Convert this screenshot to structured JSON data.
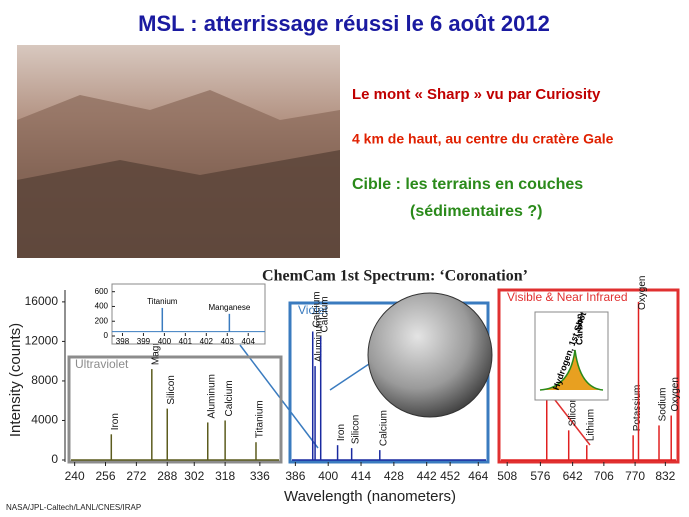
{
  "header": {
    "title": "MSL : atterrissage réussi le 6 août 2012"
  },
  "captions": [
    "Le mont « Sharp » vu par Curiosity",
    "4 km de haut, au centre du cratère Gale",
    "Cible : les terrains en couches",
    "(sédimentaires ?)"
  ],
  "chart": {
    "title": "ChemCam 1st Spectrum: ‘Coronation’",
    "y_label": "Intensity (counts)",
    "x_label": "Wavelength (nanometers)",
    "ylim": [
      0,
      17000
    ],
    "yticks": [
      0,
      4000,
      8000,
      12000,
      16000
    ],
    "regions": [
      {
        "name": "Ultraviolet",
        "color": "#8c8c8c",
        "line_color": "#5c5c1e",
        "xlim": [
          235,
          348
        ],
        "xticks": [
          240,
          256,
          272,
          288,
          302,
          318,
          336
        ],
        "peaks": [
          {
            "element": "Iron",
            "x": 259,
            "y": 2600
          },
          {
            "element": "Magnesium",
            "x": 280,
            "y": 9200
          },
          {
            "element": "Silicon",
            "x": 288,
            "y": 5200
          },
          {
            "element": "Aluminum",
            "x": 309,
            "y": 3800
          },
          {
            "element": "Calcium",
            "x": 318,
            "y": 4000
          },
          {
            "element": "Titanium",
            "x": 334,
            "y": 1800
          }
        ]
      },
      {
        "name": "Violet",
        "color": "#3a7bbf",
        "line_color": "#1a2aa0",
        "xlim": [
          382,
          469
        ],
        "xticks": [
          386,
          400,
          414,
          428,
          442,
          452,
          464
        ],
        "peaks": [
          {
            "element": "Aluminum",
            "x": 394.4,
            "y": 9500
          },
          {
            "element": "Calcium",
            "x": 393.4,
            "y": 13000
          },
          {
            "element": "Calcium",
            "x": 396.8,
            "y": 12500
          },
          {
            "element": "Iron",
            "x": 404,
            "y": 1500
          },
          {
            "element": "Silicon",
            "x": 410,
            "y": 1200
          },
          {
            "element": "Calcium",
            "x": 422,
            "y": 1000
          }
        ]
      },
      {
        "name": "Visible & Near Infrared",
        "color": "#e03030",
        "line_color": "#e02020",
        "xlim": [
          483,
          862
        ],
        "xticks": [
          508,
          576,
          642,
          706,
          770,
          832
        ],
        "peaks": [
          {
            "element": "Sodium",
            "x": 589,
            "y": 7000
          },
          {
            "element": "Silicon",
            "x": 634,
            "y": 3000
          },
          {
            "element": "Lithium",
            "x": 671,
            "y": 1500
          },
          {
            "element": "Potassium",
            "x": 766,
            "y": 2500
          },
          {
            "element": "Oxygen",
            "x": 777,
            "y": 16000
          },
          {
            "element": "Sodium",
            "x": 819,
            "y": 3500
          },
          {
            "element": "Oxygen",
            "x": 844,
            "y": 4500
          }
        ]
      }
    ],
    "inset": {
      "xlim": [
        397.5,
        404.8
      ],
      "xticks": [
        398,
        399,
        400,
        401,
        402,
        403,
        404
      ],
      "ylim": [
        0,
        650
      ],
      "yticks": [
        0,
        200,
        400,
        600
      ],
      "peaks": [
        {
          "element": "Titanium",
          "x": 399.9,
          "y": 380
        },
        {
          "element": "Manganese",
          "x": 403.1,
          "y": 300
        }
      ]
    },
    "nir_inset": [
      "Hydrogen, 1st Shot",
      "Carbon"
    ]
  },
  "credit": "NASA/JPL-Caltech/LANL/CNES/IRAP"
}
